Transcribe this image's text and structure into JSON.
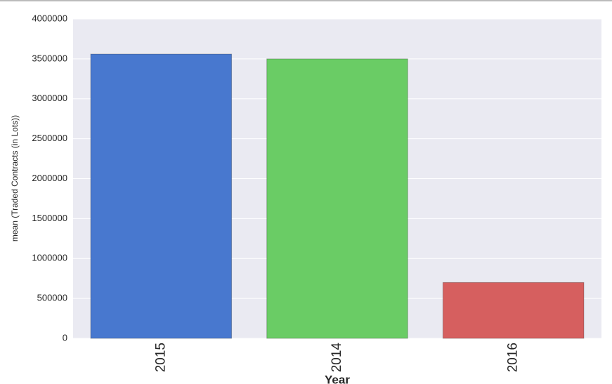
{
  "chart_data": {
    "type": "bar",
    "xlabel": "Year",
    "ylabel": "mean (Traded Contracts (in Lots))",
    "categories": [
      "2015",
      "2014",
      "2016"
    ],
    "values": [
      3560000,
      3500000,
      700000
    ],
    "colors": [
      "#4878cf",
      "#6acc65",
      "#d65f5f"
    ],
    "ylim": [
      0,
      4000000
    ],
    "yticks": [
      0,
      500000,
      1000000,
      1500000,
      2000000,
      2500000,
      3000000,
      3500000,
      4000000
    ],
    "grid": true
  }
}
